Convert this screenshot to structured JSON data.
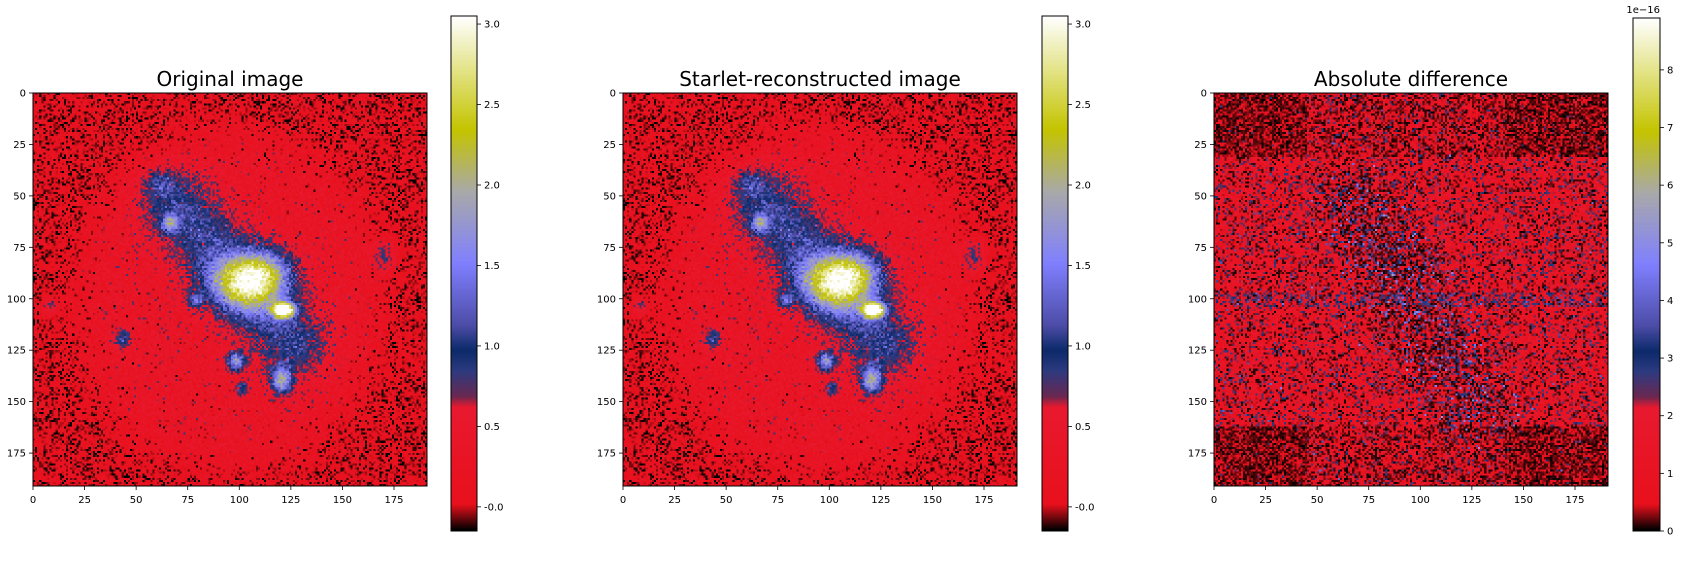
{
  "figure": {
    "panels": [
      {
        "key": "original",
        "title": "Original image"
      },
      {
        "key": "reconstructed",
        "title": "Starlet-reconstructed image"
      },
      {
        "key": "difference",
        "title": "Absolute difference"
      }
    ]
  },
  "colormap": {
    "name": "gist_stern-like",
    "stops": [
      {
        "v": 0.0,
        "c": "#000000"
      },
      {
        "v": 0.05,
        "c": "#e8101c"
      },
      {
        "v": 0.24,
        "c": "#e8192f"
      },
      {
        "v": 0.26,
        "c": "#6a2850"
      },
      {
        "v": 0.31,
        "c": "#2d3a80"
      },
      {
        "v": 0.35,
        "c": "#0c2a6a"
      },
      {
        "v": 0.4,
        "c": "#4d4da8"
      },
      {
        "v": 0.52,
        "c": "#8080ff"
      },
      {
        "v": 0.66,
        "c": "#a9a9a9"
      },
      {
        "v": 0.78,
        "c": "#c4c400"
      },
      {
        "v": 1.0,
        "c": "#ffffff"
      }
    ]
  },
  "chart_data": [
    {
      "type": "heatmap",
      "title": "Original image",
      "xlabel": "",
      "ylabel": "",
      "xlim": [
        0,
        191
      ],
      "ylim": [
        191,
        0
      ],
      "xticks": [
        0,
        25,
        50,
        75,
        100,
        125,
        150,
        175
      ],
      "yticks": [
        0,
        25,
        50,
        75,
        100,
        125,
        150,
        175
      ],
      "colorbar": {
        "vmin": -0.15,
        "vmax": 3.05,
        "ticks": [
          "-0.0",
          "0.5",
          "1.0",
          "1.5",
          "2.0",
          "2.5",
          "3.0"
        ],
        "tick_values": [
          0.0,
          0.5,
          1.0,
          1.5,
          2.0,
          2.5,
          3.0
        ],
        "offset_text": ""
      },
      "model": {
        "background": 0.05,
        "noise": 0.25,
        "halo": {
          "cx": 95,
          "cy": 100,
          "rx": 73,
          "ry": 82,
          "level": 0.28
        },
        "bar_ridge": {
          "x1": 70,
          "y1": 55,
          "x2": 125,
          "y2": 120,
          "width": 12,
          "level": 0.75
        },
        "blobs": [
          {
            "x": 103,
            "y": 92,
            "sx": 12,
            "sy": 9,
            "v": 1.9
          },
          {
            "x": 113,
            "y": 85,
            "sx": 9,
            "sy": 7,
            "v": 0.8
          },
          {
            "x": 121,
            "y": 105,
            "sx": 3.5,
            "sy": 2.5,
            "v": 3.0
          },
          {
            "x": 66,
            "y": 63,
            "sx": 3,
            "sy": 3,
            "v": 1.1
          },
          {
            "x": 78,
            "y": 100,
            "sx": 2.5,
            "sy": 2.5,
            "v": 0.9
          },
          {
            "x": 98,
            "y": 130,
            "sx": 3,
            "sy": 3,
            "v": 1.4
          },
          {
            "x": 120,
            "y": 139,
            "sx": 3.5,
            "sy": 4.5,
            "v": 1.5
          },
          {
            "x": 101,
            "y": 143,
            "sx": 2,
            "sy": 2,
            "v": 0.8
          },
          {
            "x": 43,
            "y": 119,
            "sx": 3,
            "sy": 3,
            "v": 0.8
          },
          {
            "x": 8,
            "y": 103,
            "sx": 3,
            "sy": 3,
            "v": 0.6
          },
          {
            "x": 170,
            "y": 79,
            "sx": 4,
            "sy": 5,
            "v": 0.7
          },
          {
            "x": 61,
            "y": 43,
            "sx": 5,
            "sy": 4,
            "v": 0.55
          }
        ]
      }
    },
    {
      "type": "heatmap",
      "title": "Starlet-reconstructed image",
      "xlabel": "",
      "ylabel": "",
      "xlim": [
        0,
        191
      ],
      "ylim": [
        191,
        0
      ],
      "xticks": [
        0,
        25,
        50,
        75,
        100,
        125,
        150,
        175
      ],
      "yticks": [
        0,
        25,
        50,
        75,
        100,
        125,
        150,
        175
      ],
      "colorbar": {
        "vmin": -0.15,
        "vmax": 3.05,
        "ticks": [
          "-0.0",
          "0.5",
          "1.0",
          "1.5",
          "2.0",
          "2.5",
          "3.0"
        ],
        "tick_values": [
          0.0,
          0.5,
          1.0,
          1.5,
          2.0,
          2.5,
          3.0
        ],
        "offset_text": ""
      },
      "same_as": "Original image"
    },
    {
      "type": "heatmap",
      "title": "Absolute difference",
      "xlabel": "",
      "ylabel": "",
      "xlim": [
        0,
        191
      ],
      "ylim": [
        191,
        0
      ],
      "xticks": [
        0,
        25,
        50,
        75,
        100,
        125,
        150,
        175
      ],
      "yticks": [
        0,
        25,
        50,
        75,
        100,
        125,
        150,
        175
      ],
      "colorbar": {
        "vmin": 0,
        "vmax": 8.9,
        "ticks": [
          "0",
          "1",
          "2",
          "3",
          "4",
          "5",
          "6",
          "7",
          "8"
        ],
        "tick_values": [
          0,
          1,
          2,
          3,
          4,
          5,
          6,
          7,
          8
        ],
        "offset_text": "1e−16"
      },
      "model": {
        "background": 0.8,
        "noise": 0.9,
        "dark_bands_y": [
          [
            0,
            30
          ],
          [
            162,
            191
          ]
        ],
        "dark_band_corners_x": [
          [
            0,
            40
          ],
          [
            140,
            191
          ]
        ],
        "dark_ridge": {
          "x1": 70,
          "y1": 55,
          "x2": 125,
          "y2": 150,
          "width": 14
        },
        "bright_ridge_level": 3.2,
        "bright_row_y": 100,
        "bright_row_level": 2.8
      }
    }
  ]
}
